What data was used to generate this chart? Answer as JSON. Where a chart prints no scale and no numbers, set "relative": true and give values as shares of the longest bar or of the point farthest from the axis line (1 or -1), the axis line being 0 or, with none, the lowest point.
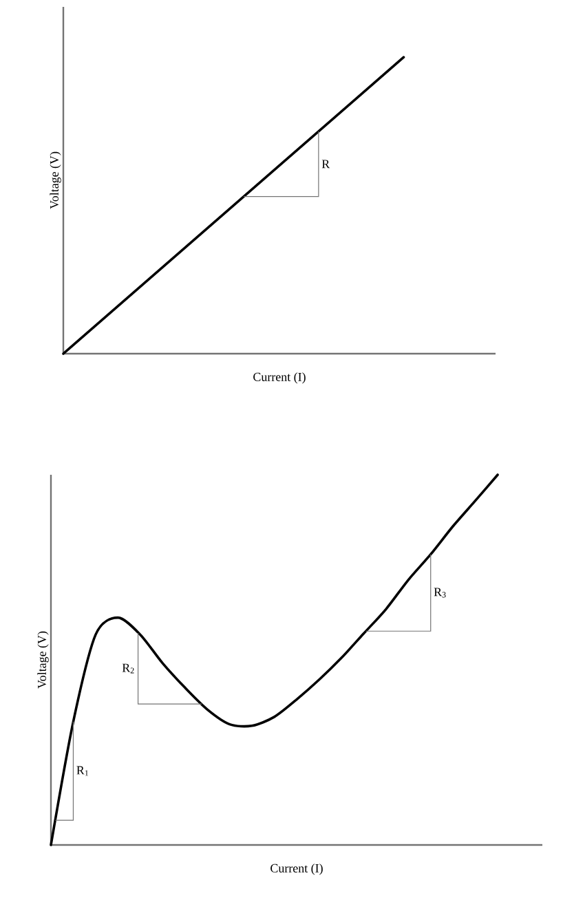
{
  "chart_data": [
    {
      "type": "line",
      "relative": true,
      "xlabel": "Current (I)",
      "ylabel": "Voltage (V)",
      "categories": [
        null,
        null
      ],
      "series": [
        {
          "color": "#000000",
          "values": [
            0,
            1
          ]
        }
      ],
      "annotations": [
        "R"
      ]
    },
    {
      "type": "line",
      "relative": true,
      "xlabel": "Current (I)",
      "ylabel": "Voltage (V)",
      "categories": [
        null,
        null,
        null,
        null,
        null,
        null,
        null,
        null,
        null,
        null,
        null,
        null,
        null,
        null,
        null,
        null,
        null,
        null,
        null,
        null,
        null
      ],
      "series": [
        {
          "color": "#000000",
          "values": [
            0,
            0.333,
            0.568,
            0.614,
            0.568,
            0.491,
            0.425,
            0.366,
            0.326,
            0.322,
            0.346,
            0.393,
            0.446,
            0.505,
            0.571,
            0.637,
            0.716,
            0.785,
            0.861,
            0.93,
            1
          ]
        }
      ],
      "annotations": [
        "R$_{1}$",
        "R$_{2}$",
        "R$_{3}$"
      ]
    }
  ]
}
